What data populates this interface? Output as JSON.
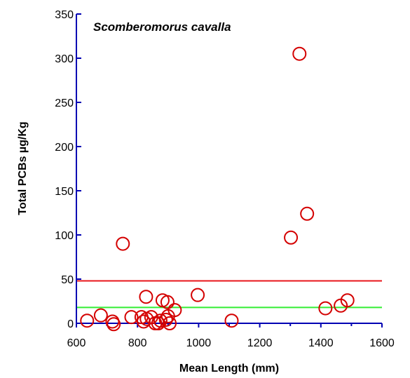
{
  "chart_data": {
    "type": "scatter",
    "title": "Scomberomorus cavalla",
    "xlabel": "Mean Length (mm)",
    "ylabel": "Total PCBs µg/Kg",
    "xlim": [
      600,
      1600
    ],
    "ylim": [
      0,
      350
    ],
    "x_ticks": [
      600,
      800,
      1000,
      1200,
      1400,
      1600
    ],
    "y_ticks": [
      0,
      50,
      100,
      150,
      200,
      250,
      300,
      350
    ],
    "grid": false,
    "legend": "none",
    "colors": {
      "axis": "#0000b3",
      "marker": "#d40000",
      "line_upper": "#e8151b",
      "line_lower": "#33ee33"
    },
    "reference_lines": [
      {
        "y": 48,
        "color": "#e8151b"
      },
      {
        "y": 18,
        "color": "#33ee33"
      }
    ],
    "points": [
      {
        "x": 635,
        "y": 3
      },
      {
        "x": 680,
        "y": 9
      },
      {
        "x": 718,
        "y": 2
      },
      {
        "x": 722,
        "y": -1
      },
      {
        "x": 752,
        "y": 90
      },
      {
        "x": 780,
        "y": 7
      },
      {
        "x": 813,
        "y": 7
      },
      {
        "x": 820,
        "y": 2
      },
      {
        "x": 828,
        "y": 30
      },
      {
        "x": 830,
        "y": 5
      },
      {
        "x": 845,
        "y": 7
      },
      {
        "x": 858,
        "y": 0
      },
      {
        "x": 868,
        "y": 0
      },
      {
        "x": 875,
        "y": 3
      },
      {
        "x": 882,
        "y": 26
      },
      {
        "x": 893,
        "y": 4
      },
      {
        "x": 898,
        "y": 24
      },
      {
        "x": 900,
        "y": 8
      },
      {
        "x": 905,
        "y": 0
      },
      {
        "x": 922,
        "y": 15
      },
      {
        "x": 997,
        "y": 32
      },
      {
        "x": 1108,
        "y": 3
      },
      {
        "x": 1302,
        "y": 97
      },
      {
        "x": 1330,
        "y": 305
      },
      {
        "x": 1355,
        "y": 124
      },
      {
        "x": 1415,
        "y": 17
      },
      {
        "x": 1465,
        "y": 20
      },
      {
        "x": 1487,
        "y": 26
      }
    ]
  }
}
